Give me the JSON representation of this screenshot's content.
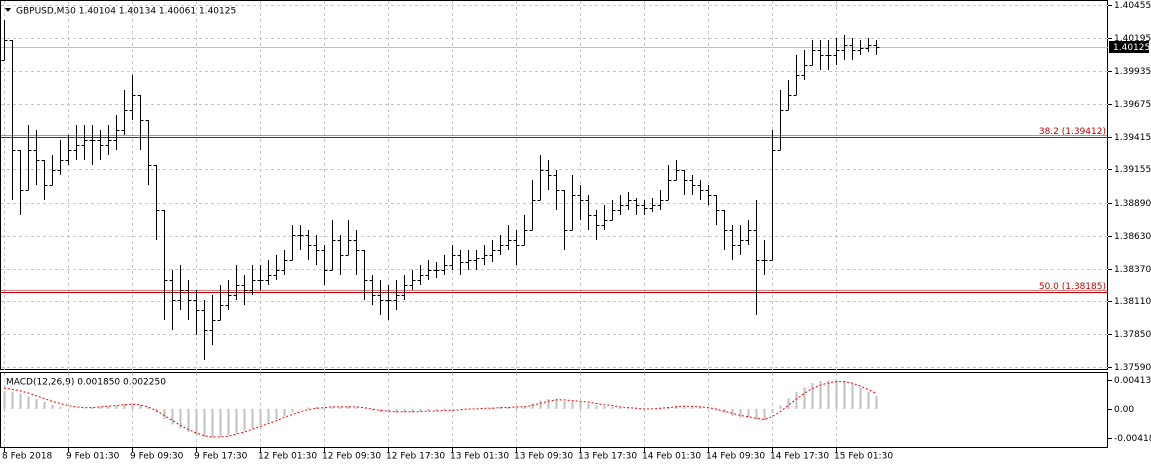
{
  "chart_data": [
    {
      "type": "ohlc",
      "title": "GBPUSD,M30 1.40104 1.40134 1.40061 1.40125",
      "color": "#000000",
      "grid": true,
      "ylim": [
        1.37568,
        1.40495
      ],
      "yticks": [
        1.40455,
        1.40195,
        1.39935,
        1.39675,
        1.39415,
        1.39155,
        {
          "value": 1.3889,
          "label": "1.38890"
        },
        {
          "value": 1.3863,
          "label": "1.38630"
        },
        {
          "value": 1.3837,
          "label": "1.38370"
        },
        {
          "value": 1.3811,
          "label": "1.38110"
        },
        {
          "value": 1.3785,
          "label": "1.37850"
        },
        {
          "value": 1.3759,
          "label": "1.37590"
        }
      ],
      "levels": [
        {
          "label": "38.2 (1.39412)",
          "value": 1.39412,
          "color": "#c00000"
        },
        {
          "label": "50.0 (1.38185)",
          "value": 1.38185,
          "color": "#c00000"
        }
      ],
      "current_price": 1.40125,
      "categories": [
        "8 Feb 2018",
        null,
        null,
        null,
        null,
        null,
        null,
        null,
        "9 Feb 01:30",
        null,
        null,
        null,
        null,
        null,
        null,
        null,
        "9 Feb 09:30",
        null,
        null,
        null,
        null,
        null,
        null,
        null,
        "9 Feb 17:30",
        null,
        null,
        null,
        null,
        null,
        null,
        null,
        "12 Feb 01:30",
        null,
        null,
        null,
        null,
        null,
        null,
        null,
        "12 Feb 09:30",
        null,
        null,
        null,
        null,
        null,
        null,
        null,
        "12 Feb 17:30",
        null,
        null,
        null,
        null,
        null,
        null,
        null,
        "13 Feb 01:30",
        null,
        null,
        null,
        null,
        null,
        null,
        null,
        "13 Feb 09:30",
        null,
        null,
        null,
        null,
        null,
        null,
        null,
        "13 Feb 17:30",
        null,
        null,
        null,
        null,
        null,
        null,
        null,
        "14 Feb 01:30",
        null,
        null,
        null,
        null,
        null,
        null,
        null,
        "14 Feb 09:30",
        null,
        null,
        null,
        null,
        null,
        null,
        null,
        "14 Feb 17:30",
        null,
        null,
        null,
        null,
        null,
        null,
        null,
        "15 Feb 01:30",
        null,
        null,
        null,
        null,
        null
      ],
      "bars": [
        [
          1.4002,
          1.40336,
          1.4002,
          1.40178
        ],
        [
          1.40178,
          1.40178,
          1.38913,
          1.39308
        ],
        [
          1.39308,
          1.39308,
          1.38794,
          1.38992
        ],
        [
          1.38992,
          1.39506,
          1.38992,
          1.39308
        ],
        [
          1.39308,
          1.39466,
          1.39031,
          1.39229
        ],
        [
          1.39229,
          1.39229,
          1.38913,
          1.39031
        ],
        [
          1.39031,
          1.39268,
          1.39031,
          1.3915
        ],
        [
          1.3915,
          1.39387,
          1.3911,
          1.39229
        ],
        [
          1.39229,
          1.39427,
          1.39189,
          1.39308
        ],
        [
          1.39308,
          1.39506,
          1.39229,
          1.39348
        ],
        [
          1.39348,
          1.39506,
          1.39229,
          1.39387
        ],
        [
          1.39387,
          1.39506,
          1.39189,
          1.39387
        ],
        [
          1.39387,
          1.39466,
          1.39229,
          1.39348
        ],
        [
          1.39348,
          1.39506,
          1.39268,
          1.39387
        ],
        [
          1.39387,
          1.39585,
          1.39308,
          1.39466
        ],
        [
          1.39466,
          1.39783,
          1.39427,
          1.39624
        ],
        [
          1.39624,
          1.39901,
          1.39545,
          1.39743
        ],
        [
          1.39743,
          1.39743,
          1.39308,
          1.39545
        ],
        [
          1.39545,
          1.39545,
          1.39031,
          1.39189
        ],
        [
          1.39189,
          1.39189,
          1.38596,
          1.38833
        ],
        [
          1.38833,
          1.38833,
          1.37963,
          1.3828
        ],
        [
          1.3828,
          1.38359,
          1.37884,
          1.38122
        ],
        [
          1.38122,
          1.38398,
          1.38042,
          1.38201
        ],
        [
          1.38201,
          1.3828,
          1.37963,
          1.38122
        ],
        [
          1.38122,
          1.38201,
          1.37845,
          1.38042
        ],
        [
          1.38042,
          1.38122,
          1.37647,
          1.37884
        ],
        [
          1.37884,
          1.38161,
          1.37766,
          1.37963
        ],
        [
          1.37963,
          1.3824,
          1.37963,
          1.38082
        ],
        [
          1.38082,
          1.3828,
          1.38042,
          1.38161
        ],
        [
          1.38161,
          1.38398,
          1.38122,
          1.3824
        ],
        [
          1.3824,
          1.38319,
          1.38082,
          1.38201
        ],
        [
          1.38201,
          1.38398,
          1.38161,
          1.3828
        ],
        [
          1.3828,
          1.38398,
          1.38201,
          1.3828
        ],
        [
          1.3828,
          1.38438,
          1.3824,
          1.38319
        ],
        [
          1.38319,
          1.38477,
          1.3828,
          1.38359
        ],
        [
          1.38359,
          1.38517,
          1.38319,
          1.38438
        ],
        [
          1.38438,
          1.38715,
          1.38438,
          1.38636
        ],
        [
          1.38636,
          1.38715,
          1.38517,
          1.38636
        ],
        [
          1.38636,
          1.38675,
          1.38438,
          1.38557
        ],
        [
          1.38557,
          1.38636,
          1.38398,
          1.38517
        ],
        [
          1.38517,
          1.38557,
          1.3824,
          1.38359
        ],
        [
          1.38359,
          1.38754,
          1.38359,
          1.38596
        ],
        [
          1.38596,
          1.38636,
          1.38319,
          1.38477
        ],
        [
          1.38477,
          1.38754,
          1.38477,
          1.38596
        ],
        [
          1.38596,
          1.38675,
          1.38319,
          1.38517
        ],
        [
          1.38517,
          1.38517,
          1.38122,
          1.3828
        ],
        [
          1.3828,
          1.38319,
          1.38082,
          1.38161
        ],
        [
          1.38161,
          1.3828,
          1.38003,
          1.38122
        ],
        [
          1.38122,
          1.3824,
          1.37963,
          1.38122
        ],
        [
          1.38122,
          1.3828,
          1.38042,
          1.38161
        ],
        [
          1.38161,
          1.38319,
          1.38122,
          1.3824
        ],
        [
          1.3824,
          1.38359,
          1.38201,
          1.3828
        ],
        [
          1.3828,
          1.38398,
          1.3824,
          1.38319
        ],
        [
          1.38319,
          1.38438,
          1.3828,
          1.38359
        ],
        [
          1.38359,
          1.38422,
          1.38296,
          1.38359
        ],
        [
          1.38359,
          1.38477,
          1.38319,
          1.38398
        ],
        [
          1.38398,
          1.38557,
          1.38359,
          1.38477
        ],
        [
          1.38477,
          1.38517,
          1.38319,
          1.38422
        ],
        [
          1.38422,
          1.38517,
          1.38359,
          1.38438
        ],
        [
          1.38438,
          1.38517,
          1.38359,
          1.38454
        ],
        [
          1.38454,
          1.38557,
          1.38398,
          1.38477
        ],
        [
          1.38477,
          1.38596,
          1.38422,
          1.38517
        ],
        [
          1.38517,
          1.38636,
          1.38477,
          1.38557
        ],
        [
          1.38557,
          1.38715,
          1.38517,
          1.38596
        ],
        [
          1.38596,
          1.38675,
          1.38398,
          1.38557
        ],
        [
          1.38557,
          1.38794,
          1.38557,
          1.38675
        ],
        [
          1.38675,
          1.39071,
          1.38675,
          1.38913
        ],
        [
          1.38913,
          1.39268,
          1.38913,
          1.3915
        ],
        [
          1.3915,
          1.39229,
          1.38992,
          1.3911
        ],
        [
          1.3911,
          1.3915,
          1.38833,
          1.38992
        ],
        [
          1.38992,
          1.38992,
          1.38517,
          1.38675
        ],
        [
          1.38675,
          1.3911,
          1.38675,
          1.38952
        ],
        [
          1.38952,
          1.39031,
          1.38754,
          1.38913
        ],
        [
          1.38913,
          1.38952,
          1.38675,
          1.38794
        ],
        [
          1.38794,
          1.38833,
          1.38596,
          1.38715
        ],
        [
          1.38715,
          1.38873,
          1.38675,
          1.38754
        ],
        [
          1.38754,
          1.38913,
          1.38754,
          1.38833
        ],
        [
          1.38833,
          1.38952,
          1.38794,
          1.38873
        ],
        [
          1.38873,
          1.38976,
          1.38833,
          1.38913
        ],
        [
          1.38913,
          1.38928,
          1.38794,
          1.38873
        ],
        [
          1.38873,
          1.38913,
          1.38794,
          1.38849
        ],
        [
          1.38849,
          1.38928,
          1.38818,
          1.38873
        ],
        [
          1.38873,
          1.38992,
          1.38833,
          1.38913
        ],
        [
          1.38913,
          1.39189,
          1.38913,
          1.39071
        ],
        [
          1.39071,
          1.39229,
          1.39071,
          1.3915
        ],
        [
          1.3915,
          1.3915,
          1.38952,
          1.39071
        ],
        [
          1.39071,
          1.3911,
          1.38952,
          1.39031
        ],
        [
          1.39031,
          1.39071,
          1.38913,
          1.38992
        ],
        [
          1.38992,
          1.39031,
          1.38873,
          1.38952
        ],
        [
          1.38952,
          1.38952,
          1.38715,
          1.38833
        ],
        [
          1.38833,
          1.38833,
          1.38517,
          1.38675
        ],
        [
          1.38675,
          1.38715,
          1.38438,
          1.38557
        ],
        [
          1.38557,
          1.38715,
          1.38477,
          1.38596
        ],
        [
          1.38596,
          1.38754,
          1.38557,
          1.38675
        ],
        [
          1.38675,
          1.38913,
          1.38003,
          1.38438
        ],
        [
          1.38438,
          1.38596,
          1.38319,
          1.38438
        ],
        [
          1.38438,
          1.39466,
          1.38438,
          1.39308
        ],
        [
          1.39308,
          1.39783,
          1.39308,
          1.39624
        ],
        [
          1.39624,
          1.39862,
          1.39624,
          1.39743
        ],
        [
          1.39743,
          1.40059,
          1.39743,
          1.39901
        ],
        [
          1.39901,
          1.40099,
          1.39862,
          1.3998
        ],
        [
          1.3998,
          1.40178,
          1.3998,
          1.40099
        ],
        [
          1.40099,
          1.40178,
          1.39941,
          1.40059
        ],
        [
          1.40059,
          1.40178,
          1.39941,
          1.40059
        ],
        [
          1.40059,
          1.40194,
          1.3998,
          1.40099
        ],
        [
          1.40099,
          1.40218,
          1.4002,
          1.40139
        ],
        [
          1.40139,
          1.40194,
          1.4002,
          1.40099
        ],
        [
          1.40099,
          1.40178,
          1.40059,
          1.40115
        ],
        [
          1.40115,
          1.40194,
          1.40083,
          1.40139
        ],
        [
          1.40139,
          1.40178,
          1.40059,
          1.40125
        ]
      ]
    },
    {
      "type": "macd",
      "title": "MACD(12,26,9) 0.001850 0.002250",
      "ylim": [
        -0.00542,
        0.00528
      ],
      "yticks": [
        0.004135,
        {
          "value": 0,
          "label": "0.00"
        },
        -0.004185
      ],
      "series": [
        {
          "type": "histogram",
          "color": "#c0c0c0",
          "values": [
            0.0025,
            0.0024,
            0.0022,
            0.0018,
            0.0014,
            0.001,
            0.0006,
            0.0003,
            0.0001,
            0.0,
            0.0001,
            0.0002,
            0.0003,
            0.0004,
            0.0005,
            0.0007,
            0.0008,
            0.0006,
            0.0002,
            -0.0005,
            -0.0014,
            -0.0022,
            -0.0028,
            -0.0033,
            -0.0037,
            -0.004,
            -0.0041,
            -0.004,
            -0.0038,
            -0.0035,
            -0.0031,
            -0.0027,
            -0.0023,
            -0.0019,
            -0.0015,
            -0.001,
            -0.0005,
            -0.0001,
            0.0002,
            0.0003,
            0.0002,
            0.0003,
            0.0003,
            0.0004,
            0.0003,
            0.0001,
            -0.0002,
            -0.0004,
            -0.0005,
            -0.0005,
            -0.0005,
            -0.0005,
            -0.0004,
            -0.0003,
            -0.0003,
            -0.0002,
            -0.0001,
            0.0,
            0.0,
            0.0001,
            0.0001,
            0.0002,
            0.0003,
            0.0003,
            0.0003,
            0.0004,
            0.0008,
            0.0012,
            0.0014,
            0.0014,
            0.0011,
            0.0011,
            0.001,
            0.0008,
            0.0005,
            0.0004,
            0.0003,
            0.0002,
            0.0001,
            0.0,
            0.0,
            0.0,
            0.0001,
            0.0003,
            0.0005,
            0.0005,
            0.0004,
            0.0003,
            0.0001,
            -0.0002,
            -0.0006,
            -0.001,
            -0.0012,
            -0.0012,
            -0.0015,
            -0.0016,
            -0.0006,
            0.0005,
            0.0015,
            0.0024,
            0.0031,
            0.0037,
            0.004,
            0.0041,
            0.0041,
            0.004,
            0.0036,
            0.003,
            0.0024,
            0.00185
          ]
        },
        {
          "type": "line",
          "color": "#ff0000",
          "values": [
            0.003,
            0.0028,
            0.0026,
            0.0023,
            0.0019,
            0.0015,
            0.0011,
            0.0008,
            0.0005,
            0.0003,
            0.0002,
            0.0002,
            0.0003,
            0.0004,
            0.0005,
            0.0006,
            0.0007,
            0.0006,
            0.0003,
            -0.0002,
            -0.0009,
            -0.0016,
            -0.0023,
            -0.0029,
            -0.0034,
            -0.0038,
            -0.004,
            -0.004,
            -0.0039,
            -0.0036,
            -0.0033,
            -0.0029,
            -0.0025,
            -0.0021,
            -0.0017,
            -0.0012,
            -0.0008,
            -0.0004,
            -0.0001,
            0.0001,
            0.0002,
            0.0003,
            0.0003,
            0.0003,
            0.0003,
            0.0002,
            0.0,
            -0.0002,
            -0.0003,
            -0.0004,
            -0.0004,
            -0.0004,
            -0.0004,
            -0.0003,
            -0.0003,
            -0.0002,
            -0.0002,
            -0.0001,
            0.0,
            0.0,
            0.0001,
            0.0001,
            0.0002,
            0.0002,
            0.0003,
            0.0003,
            0.0005,
            0.0008,
            0.0011,
            0.0013,
            0.0013,
            0.0012,
            0.0011,
            0.001,
            0.0008,
            0.0006,
            0.0005,
            0.0003,
            0.0002,
            0.0001,
            0.0,
            0.0,
            0.0001,
            0.0002,
            0.0003,
            0.0004,
            0.0004,
            0.0003,
            0.0002,
            0.0,
            -0.0003,
            -0.0006,
            -0.0009,
            -0.0011,
            -0.0013,
            -0.0015,
            -0.0011,
            -0.0004,
            0.0005,
            0.0014,
            0.0022,
            0.0029,
            0.0034,
            0.0037,
            0.0039,
            0.0039,
            0.0037,
            0.0033,
            0.0028,
            0.00225
          ]
        }
      ]
    }
  ]
}
